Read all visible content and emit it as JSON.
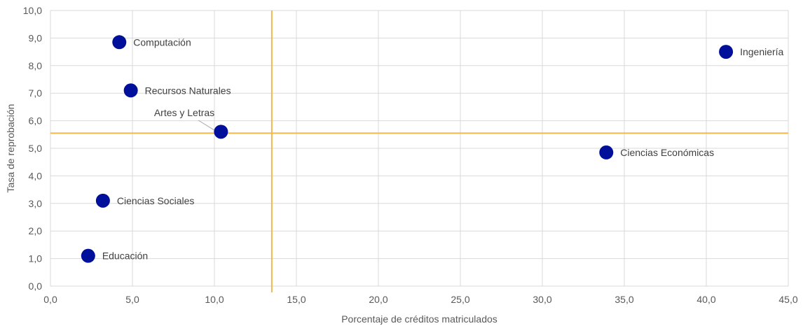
{
  "chart_data": {
    "type": "scatter",
    "title": "",
    "xlabel": "Porcentaje de créditos matriculados",
    "ylabel": "Tasa de reprobación",
    "xlim": [
      0,
      45
    ],
    "ylim": [
      0,
      10
    ],
    "x_ticks": [
      "0,0",
      "5,0",
      "10,0",
      "15,0",
      "20,0",
      "25,0",
      "30,0",
      "35,0",
      "40,0",
      "45,0"
    ],
    "y_ticks": [
      "0,0",
      "1,0",
      "2,0",
      "3,0",
      "4,0",
      "5,0",
      "6,0",
      "7,0",
      "8,0",
      "9,0",
      "10,0"
    ],
    "grid": true,
    "points": [
      {
        "label": "Computación",
        "x": 4.2,
        "y": 8.85
      },
      {
        "label": "Ingeniería",
        "x": 41.2,
        "y": 8.5
      },
      {
        "label": "Recursos Naturales",
        "x": 4.9,
        "y": 7.1
      },
      {
        "label": "Artes y Letras",
        "x": 10.4,
        "y": 5.6
      },
      {
        "label": "Ciencias Económicas",
        "x": 33.9,
        "y": 4.85
      },
      {
        "label": "Ciencias Sociales",
        "x": 3.2,
        "y": 3.1
      },
      {
        "label": "Educación",
        "x": 2.3,
        "y": 1.1
      }
    ],
    "reference_lines": {
      "x": 13.5,
      "y": 5.55
    },
    "colors": {
      "marker": "#00109A",
      "reference_line": "#F2B84B",
      "grid": "#D9D9D9"
    }
  }
}
